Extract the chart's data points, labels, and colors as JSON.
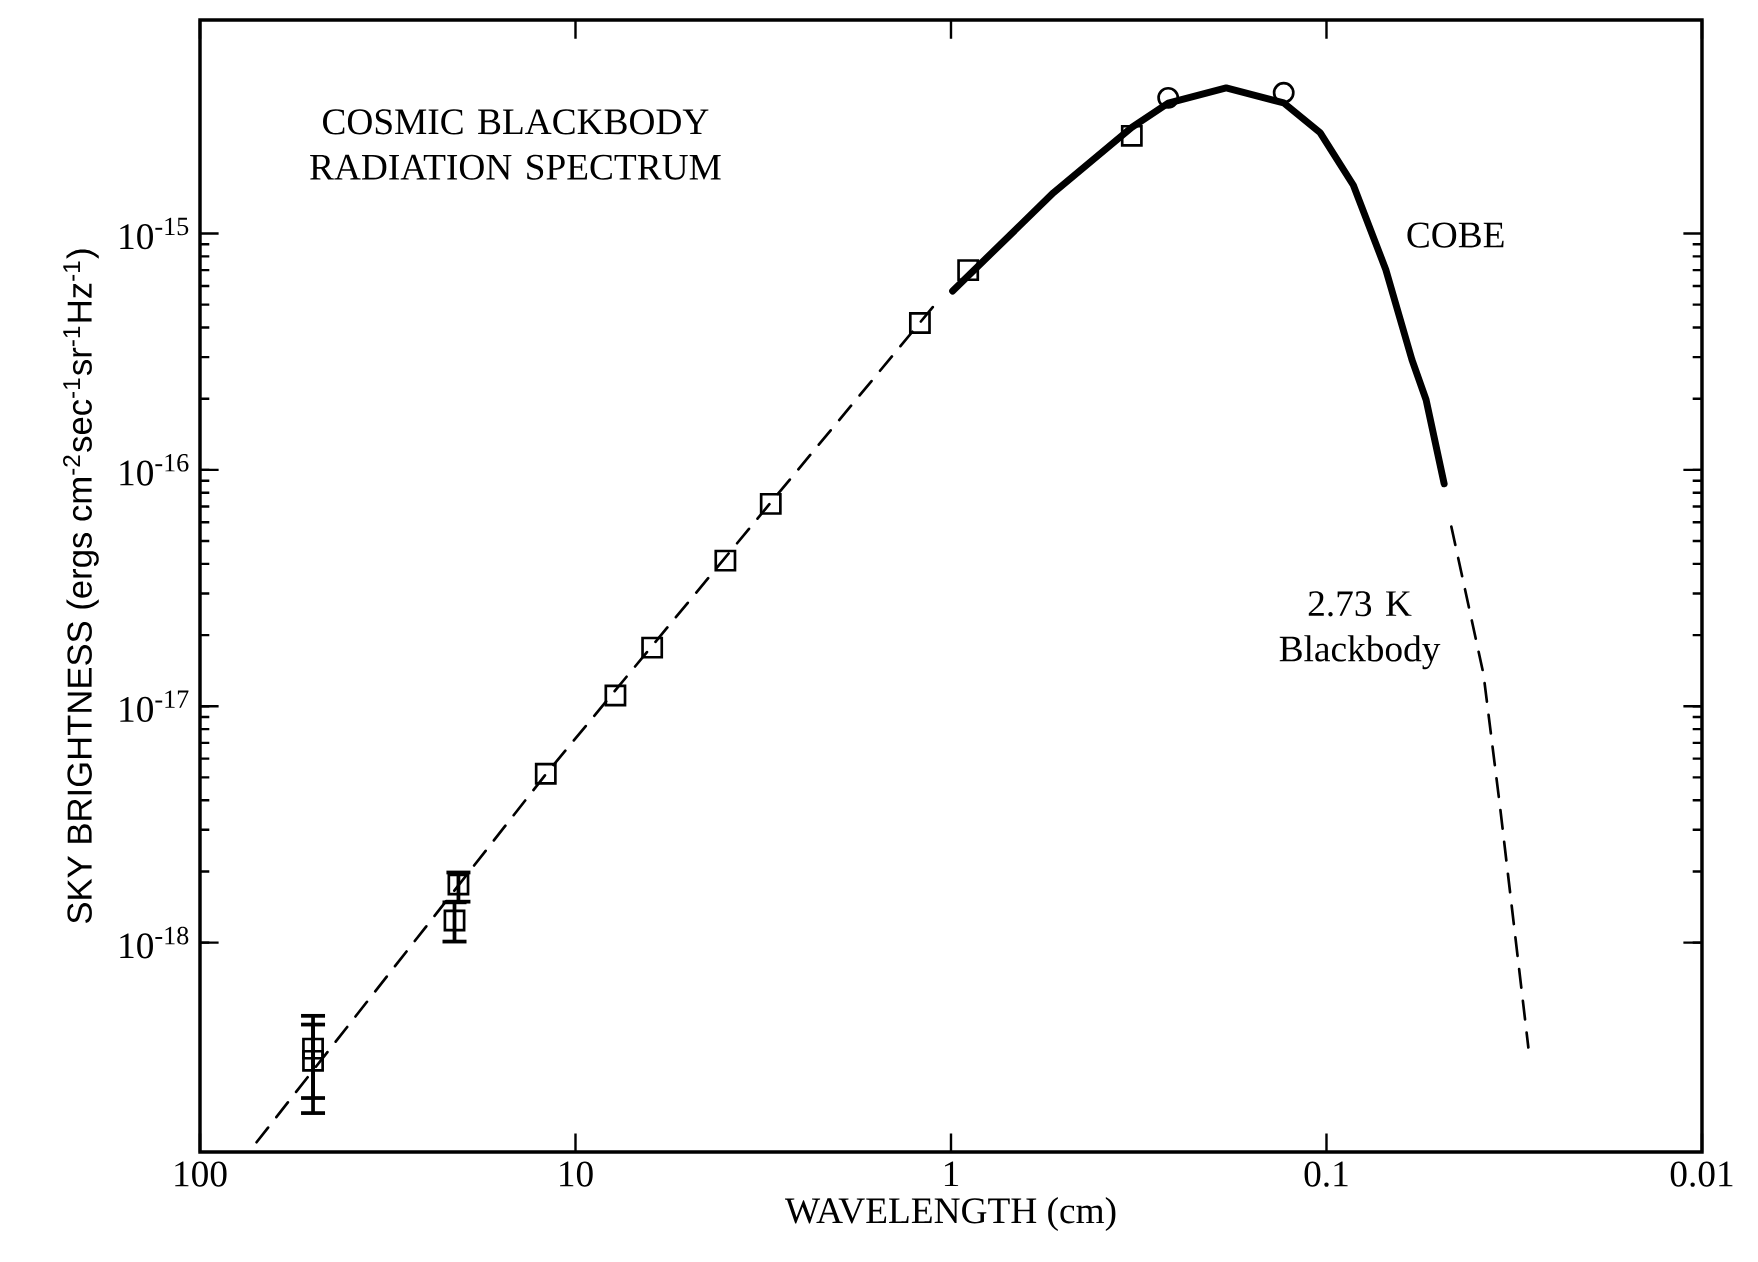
{
  "chart_data": {
    "type": "line",
    "xlabel": "WAVELENGTH (cm)",
    "ylabel": "SKY BRIGHTNESS (ergs cm$^{-2}$sec$^{-1}$sr$^{-1}$Hz$^{-1}$)",
    "log": "xy",
    "xlim": [
      100,
      0.01
    ],
    "ylim": [
      1.3e-19,
      8e-15
    ],
    "xticks": [
      100,
      10,
      1,
      0.1,
      0.01
    ],
    "yticks": [
      {
        "value": 1e-18,
        "label": "10$^{-18}$"
      },
      {
        "value": 1e-17,
        "label": "10$^{-17}$"
      },
      {
        "value": 1e-16,
        "label": "10$^{-16}$"
      },
      {
        "value": 1e-15,
        "label": "10$^{-15}$"
      }
    ],
    "series": [
      {
        "color": "#000000",
        "line_style": "dashed",
        "x": [
          70.7,
          12.0,
          3.04,
          1.11
        ],
        "values": [
          1.43e-19,
          5.15e-18,
          7.18e-17,
          4.95e-16
        ]
      },
      {
        "color": "#000000",
        "line_style": "solid",
        "x": [
          0.99,
          0.533,
          0.33,
          0.264,
          0.185,
          0.13,
          0.104,
          0.0848,
          0.0695,
          0.0592,
          0.0543,
          0.0486
        ],
        "values": [
          5.71e-16,
          1.49e-15,
          2.81e-15,
          3.56e-15,
          4.13e-15,
          3.57e-15,
          2.67e-15,
          1.6e-15,
          7.03e-16,
          2.92e-16,
          1.98e-16,
          8.73e-17
        ]
      },
      {
        "color": "#000000",
        "line_style": "dashed",
        "x": [
          0.0465,
          0.0382,
          0.0345,
          0.029
        ],
        "values": [
          5.75e-17,
          1.37e-17,
          3.75e-18,
          3.6e-19
        ]
      },
      {
        "type": "scatter",
        "color": "#000000",
        "marker": "square",
        "x": [
          50,
          50,
          20.5,
          21,
          12.0,
          7.83,
          6.25,
          3.99,
          3.02,
          1.21,
          0.9,
          0.33
        ],
        "values": [
          3.16e-19,
          3.56e-19,
          1.76e-18,
          1.24e-18,
          5.18e-18,
          1.11e-17,
          1.77e-17,
          4.13e-17,
          7.18e-17,
          4.18e-16,
          7e-16,
          2.59e-15
        ],
        "errors": [
          [
            1.9e-19,
            4.9e-19
          ],
          [
            2.2e-19,
            4.5e-19
          ],
          [
            1.49e-18,
            1.98e-18
          ],
          [
            1.01e-18,
            1.48e-18
          ],
          null,
          null,
          null,
          null,
          null,
          null,
          null,
          null
        ]
      },
      {
        "type": "scatter",
        "color": "#000000",
        "marker": "circle",
        "x": [
          0.264,
          0.13
        ],
        "values": [
          3.75e-15,
          3.94e-15
        ]
      }
    ],
    "annotations": [
      "COSMIC BLACKBODY RADIATION SPECTRUM",
      "COBE",
      "2.73 K Blackbody"
    ]
  }
}
